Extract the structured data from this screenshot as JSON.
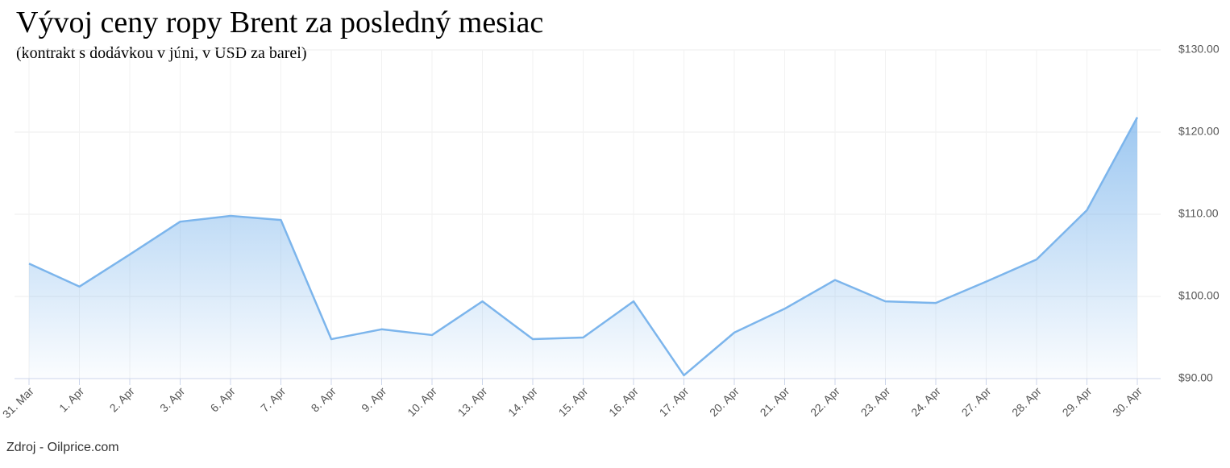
{
  "chart_data": {
    "type": "area",
    "title": "Vývoj ceny ropy Brent za posledný mesiac",
    "subtitle": "(kontrakt s dodávkou v júni, v USD za barel)",
    "source": "Zdroj - Oilprice.com",
    "categories": [
      "31. Mar",
      "1. Apr",
      "2. Apr",
      "3. Apr",
      "6. Apr",
      "7. Apr",
      "8. Apr",
      "9. Apr",
      "10. Apr",
      "13. Apr",
      "14. Apr",
      "15. Apr",
      "16. Apr",
      "17. Apr",
      "20. Apr",
      "21. Apr",
      "22. Apr",
      "23. Apr",
      "24. Apr",
      "27. Apr",
      "28. Apr",
      "29. Apr",
      "30. Apr"
    ],
    "values": [
      104.0,
      101.2,
      105.1,
      109.1,
      109.8,
      109.3,
      94.8,
      96.0,
      95.3,
      99.4,
      94.8,
      95.0,
      99.4,
      90.4,
      95.6,
      98.5,
      102.0,
      99.4,
      99.2,
      101.8,
      104.5,
      110.5,
      121.8
    ],
    "color": "#7cb5ec",
    "ylim": [
      90,
      130
    ],
    "yticks": [
      {
        "value": 90,
        "label": "$90.00"
      },
      {
        "value": 100,
        "label": "$100.00"
      },
      {
        "value": 110,
        "label": "$110.00"
      },
      {
        "value": 120,
        "label": "$120.00"
      },
      {
        "value": 130,
        "label": "$130.00"
      }
    ],
    "grid": true
  }
}
